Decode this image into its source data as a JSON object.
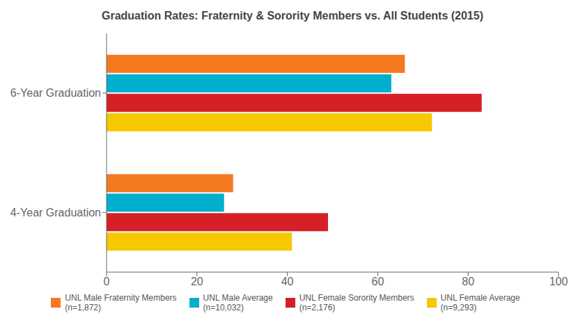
{
  "chart_data": {
    "type": "bar",
    "orientation": "horizontal",
    "title": "Graduation Rates: Fraternity & Sorority Members vs. All Students (2015)",
    "categories": [
      "6-Year Graduation",
      "4-Year Graduation"
    ],
    "series": [
      {
        "name": "UNL Male Fraternity Members\n(n=1,872)",
        "color": "#F47920",
        "values": [
          66,
          28
        ]
      },
      {
        "name": "UNL Male Average\n(n=10,032)",
        "color": "#00AECD",
        "values": [
          63,
          26
        ]
      },
      {
        "name": "UNL Female Sorority Members\n(n=2,176)",
        "color": "#D62027",
        "values": [
          83,
          49
        ]
      },
      {
        "name": "UNL Female Average\n(n=9,293)",
        "color": "#F5C800",
        "values": [
          72,
          41
        ]
      }
    ],
    "xlim": [
      0,
      100
    ],
    "xticks": [
      0,
      20,
      40,
      60,
      80,
      100
    ],
    "grid": false,
    "legend": "bottom"
  }
}
